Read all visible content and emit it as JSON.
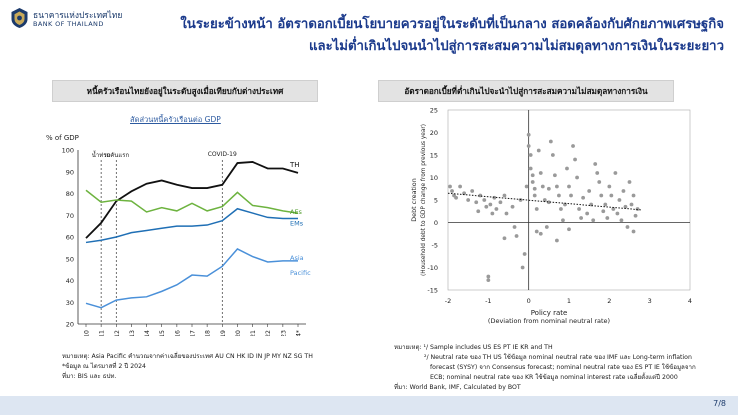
{
  "header": {
    "org_th": "ธนาคารแห่งประเทศไทย",
    "org_en": "BANK OF THAILAND",
    "title_line1": "ในระยะข้างหน้า อัตราดอกเบี้ยนโยบายควรอยู่ในระดับที่เป็นกลาง สอดคล้องกับศักยภาพเศรษฐกิจ",
    "title_line2": "และไม่ต่ำเกินไปจนนำไปสู่การสะสมความไม่สมดุลทางการเงินในระยะยาว"
  },
  "left_panel": {
    "heading": "หนี้ครัวเรือนไทยยังอยู่ในระดับสูงเมื่อเทียบกับต่างประเทศ",
    "subtitle": "สัดส่วนหนี้ครัวเรือนต่อ GDP",
    "notes": [
      "หมายเหตุ: Asia Pacific คำนวณจากค่าเฉลี่ยของประเทศ AU CN HK ID IN JP MY NZ SG TH",
      "*ข้อมูล ณ ไตรมาสที่ 2 ปี 2024",
      "ที่มา: BIS และ ธปท."
    ]
  },
  "right_panel": {
    "heading": "อัตราดอกเบี้ยที่ต่ำเกินไปจะนำไปสู่การสะสมความไม่สมดุลทางการเงิน",
    "notes": [
      "หมายเหตุ: ¹/ Sample includes US ES PT IE KR and TH",
      "²/ Neutral rate ของ TH US ใช้ข้อมูล nominal neutral rate ของ IMF และ Long-term inflation",
      "forecast (SYSY) จาก Consensus forecast; nominal neutral rate ของ ES PT IE ใช้ข้อมูลจาก",
      "ECB; nominal neutral rate ของ KR ใช้ข้อมูล nominal interest rate เฉลี่ยตั้งแต่ปี 2000",
      "ที่มา: World Bank, IMF, Calculated by BOT"
    ]
  },
  "footer": {
    "page": "7/8"
  },
  "colors": {
    "TH": "#111111",
    "AEs": "#6db33f",
    "EMs": "#1f6fb5",
    "Asia Pacific": "#4a90d9",
    "scatter": "#9a9a9a",
    "title": "#1b3a8c"
  },
  "chart_data": [
    {
      "type": "line",
      "title": "",
      "ylabel": "% of GDP",
      "ylim": [
        20,
        100
      ],
      "yticks": [
        20,
        30,
        40,
        50,
        60,
        70,
        80,
        90,
        100
      ],
      "categories": [
        "2010",
        "2011",
        "2012",
        "2013",
        "2014",
        "2015",
        "2016",
        "2017",
        "2018",
        "2019",
        "2020",
        "2021",
        "2022",
        "2023",
        "2024*"
      ],
      "annotations": [
        "น้ำท่วม",
        "รถคันแรก",
        "COVID-19"
      ],
      "annotation_years": [
        "2011",
        "2012",
        "2019"
      ],
      "series": [
        {
          "name": "TH",
          "label": "TH",
          "values": [
            59.5,
            66.5,
            76.5,
            81,
            84.5,
            86,
            84,
            82.5,
            82.5,
            84,
            94,
            94.5,
            91.5,
            91.5,
            89.5
          ]
        },
        {
          "name": "AEs",
          "label": "AEs",
          "values": [
            81.5,
            76,
            77,
            76.5,
            71.5,
            73.5,
            72,
            75.5,
            72,
            74,
            80.5,
            74.5,
            73.5,
            72,
            71
          ]
        },
        {
          "name": "EMs",
          "label": "EMs",
          "values": [
            57.5,
            58.5,
            60,
            62,
            63,
            64,
            65,
            65,
            65.5,
            67.5,
            73,
            71,
            69,
            68.5,
            68.5
          ]
        },
        {
          "name": "Asia Pacific",
          "label_line1": "Asia",
          "label_line2": "Pacific",
          "values": [
            29.5,
            27.5,
            31,
            32,
            32.5,
            35,
            38,
            42.5,
            42,
            46.5,
            54.5,
            51,
            48.5,
            49,
            49
          ]
        }
      ]
    },
    {
      "type": "scatter",
      "title": "",
      "xlabel": "Policy rate",
      "xlabel_sub": "(Deviation from nominal neutral rate)",
      "ylabel_line1": "Debt creation",
      "ylabel_line2": "(Household debt to GDP change from previous year)",
      "xlim": [
        -2,
        4
      ],
      "ylim": [
        -15,
        25
      ],
      "xticks": [
        -2,
        -1,
        0,
        1,
        2,
        3,
        4
      ],
      "yticks": [
        25,
        20,
        15,
        10,
        5,
        0,
        -5,
        -10,
        -15
      ],
      "trendline": {
        "x": [
          -2,
          2.8
        ],
        "y": [
          6.5,
          2.8
        ]
      },
      "points": [
        [
          -1.95,
          8
        ],
        [
          -1.9,
          7
        ],
        [
          -1.85,
          6
        ],
        [
          -1.8,
          5.5
        ],
        [
          -1.7,
          8
        ],
        [
          -1.6,
          6.5
        ],
        [
          -1.5,
          5
        ],
        [
          -1.4,
          7
        ],
        [
          -1.3,
          4.5
        ],
        [
          -1.25,
          2.5
        ],
        [
          -1.2,
          6
        ],
        [
          -1.1,
          5
        ],
        [
          -1.05,
          3.5
        ],
        [
          -1.0,
          -12
        ],
        [
          -1.0,
          -12.8
        ],
        [
          -0.95,
          4
        ],
        [
          -0.9,
          2
        ],
        [
          -0.85,
          5.5
        ],
        [
          -0.8,
          3
        ],
        [
          -0.7,
          4.5
        ],
        [
          -0.6,
          6
        ],
        [
          -0.55,
          2
        ],
        [
          -0.4,
          3.5
        ],
        [
          -0.35,
          -1
        ],
        [
          -0.2,
          5
        ],
        [
          -0.15,
          -10
        ],
        [
          -0.1,
          -7
        ],
        [
          -0.05,
          8
        ],
        [
          0.0,
          19.5
        ],
        [
          0.0,
          17
        ],
        [
          0.05,
          15
        ],
        [
          0.05,
          12
        ],
        [
          0.1,
          10.5
        ],
        [
          0.1,
          9
        ],
        [
          0.15,
          7.5
        ],
        [
          0.15,
          6
        ],
        [
          0.2,
          3
        ],
        [
          0.25,
          16
        ],
        [
          0.3,
          11
        ],
        [
          0.35,
          8
        ],
        [
          0.4,
          5
        ],
        [
          0.45,
          -1
        ],
        [
          0.5,
          7.5
        ],
        [
          0.5,
          4.5
        ],
        [
          0.55,
          18
        ],
        [
          0.6,
          15
        ],
        [
          0.65,
          10.5
        ],
        [
          0.7,
          8
        ],
        [
          0.75,
          6
        ],
        [
          0.8,
          3
        ],
        [
          0.85,
          0.5
        ],
        [
          0.9,
          4
        ],
        [
          0.95,
          12
        ],
        [
          1.0,
          8
        ],
        [
          1.05,
          6
        ],
        [
          1.1,
          17
        ],
        [
          1.15,
          14
        ],
        [
          1.2,
          10
        ],
        [
          1.25,
          3
        ],
        [
          1.3,
          1
        ],
        [
          1.35,
          5.5
        ],
        [
          1.45,
          2
        ],
        [
          1.5,
          7
        ],
        [
          1.55,
          4
        ],
        [
          1.6,
          0.5
        ],
        [
          1.65,
          13
        ],
        [
          1.7,
          11
        ],
        [
          1.75,
          9
        ],
        [
          1.8,
          6
        ],
        [
          1.85,
          2.5
        ],
        [
          1.9,
          4
        ],
        [
          1.95,
          1
        ],
        [
          2.0,
          8
        ],
        [
          2.05,
          6
        ],
        [
          2.1,
          3
        ],
        [
          2.15,
          11
        ],
        [
          2.2,
          2
        ],
        [
          2.25,
          5
        ],
        [
          2.3,
          0.5
        ],
        [
          2.35,
          7
        ],
        [
          2.4,
          3.5
        ],
        [
          2.45,
          -1
        ],
        [
          2.5,
          9
        ],
        [
          2.55,
          4
        ],
        [
          2.6,
          6
        ],
        [
          2.65,
          1.5
        ],
        [
          2.7,
          3
        ],
        [
          -0.3,
          -3
        ],
        [
          -0.6,
          -3.5
        ],
        [
          0.3,
          -2.5
        ],
        [
          0.7,
          -4
        ],
        [
          0.2,
          -2
        ],
        [
          1.0,
          -1.5
        ],
        [
          2.6,
          -2
        ]
      ]
    }
  ]
}
